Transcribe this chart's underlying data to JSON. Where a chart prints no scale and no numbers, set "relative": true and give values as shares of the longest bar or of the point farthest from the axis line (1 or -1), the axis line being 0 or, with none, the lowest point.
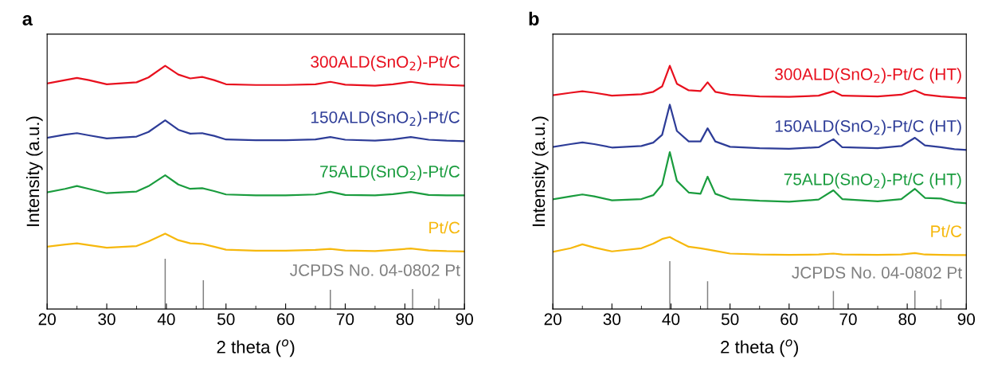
{
  "chart_data": [
    {
      "type": "line",
      "title": "a",
      "xlabel": "2 theta ($^{o}$)",
      "ylabel": "Intensity (a.u.)",
      "relative": true,
      "xlim": [
        20,
        90
      ],
      "xticks": [
        20,
        30,
        40,
        50,
        60,
        70,
        80,
        90
      ],
      "grid": false,
      "legend": false,
      "tick_labels": "x",
      "series": [
        {
          "name": "300ALD(SnO$_{2}$)-Pt/C",
          "color": "#e8101e",
          "x": [
            20,
            23,
            25,
            27,
            30,
            35,
            37,
            39.8,
            42,
            44,
            46,
            48,
            50,
            55,
            60,
            65,
            67.5,
            70,
            75,
            78,
            81,
            84,
            87,
            90
          ],
          "values": [
            0.927,
            0.941,
            0.95,
            0.941,
            0.924,
            0.932,
            0.952,
            1,
            0.964,
            0.948,
            0.954,
            0.941,
            0.924,
            0.921,
            0.921,
            0.924,
            0.934,
            0.922,
            0.918,
            0.924,
            0.934,
            0.924,
            0.921,
            0.918
          ]
        },
        {
          "name": "150ALD(SnO$_{2}$)-Pt/C",
          "color": "#2e3d98",
          "x": [
            20,
            23,
            25,
            27,
            30,
            35,
            37,
            39.8,
            42,
            44,
            46,
            48,
            50,
            55,
            60,
            65,
            67.5,
            70,
            75,
            78,
            81,
            84,
            87,
            90
          ],
          "values": [
            0.704,
            0.717,
            0.723,
            0.714,
            0.701,
            0.709,
            0.728,
            0.776,
            0.737,
            0.721,
            0.723,
            0.712,
            0.697,
            0.694,
            0.694,
            0.697,
            0.707,
            0.696,
            0.692,
            0.697,
            0.707,
            0.696,
            0.692,
            0.69
          ]
        },
        {
          "name": "75ALD(SnO$_{2}$)-Pt/C",
          "color": "#1a9c3e",
          "x": [
            20,
            23,
            25,
            27,
            30,
            35,
            37,
            39.8,
            42,
            44,
            46,
            48,
            50,
            55,
            60,
            65,
            67.5,
            70,
            75,
            78,
            81,
            84,
            87,
            90
          ],
          "values": [
            0.48,
            0.494,
            0.506,
            0.494,
            0.476,
            0.483,
            0.505,
            0.55,
            0.512,
            0.494,
            0.497,
            0.485,
            0.471,
            0.467,
            0.467,
            0.471,
            0.482,
            0.469,
            0.467,
            0.472,
            0.481,
            0.469,
            0.467,
            0.467
          ]
        },
        {
          "name": "Pt/C",
          "color": "#f6b80d",
          "x": [
            20,
            23,
            25,
            27,
            30,
            35,
            37,
            39.8,
            42,
            44,
            46,
            48,
            50,
            55,
            60,
            65,
            67.5,
            70,
            75,
            78,
            81,
            84,
            87,
            90
          ],
          "values": [
            0.256,
            0.265,
            0.27,
            0.263,
            0.252,
            0.259,
            0.278,
            0.31,
            0.283,
            0.27,
            0.268,
            0.256,
            0.244,
            0.24,
            0.24,
            0.243,
            0.247,
            0.241,
            0.238,
            0.243,
            0.249,
            0.241,
            0.238,
            0.237
          ]
        },
        {
          "name": "JCPDS No. 04-0802 Pt",
          "type": "bar",
          "color": "#808080",
          "x": [
            39.8,
            46.2,
            67.5,
            81.3,
            85.7
          ],
          "values": [
            0.207,
            0.118,
            0.079,
            0.082,
            0.042
          ]
        }
      ]
    },
    {
      "type": "line",
      "title": "b",
      "xlabel": "2 theta ($^{o}$)",
      "ylabel": "Intensity (a.u.)",
      "relative": true,
      "xlim": [
        20,
        90
      ],
      "xticks": [
        20,
        30,
        40,
        50,
        60,
        70,
        80,
        90
      ],
      "grid": false,
      "legend": false,
      "tick_labels": "x",
      "series": [
        {
          "name": "300ALD(SnO$_{2}$)-Pt/C (HT)",
          "color": "#e8101e",
          "x": [
            20,
            23,
            25,
            27,
            30,
            35,
            37,
            38.5,
            39.8,
            41,
            43,
            45,
            46.2,
            47.5,
            50,
            55,
            60,
            65,
            67.5,
            69,
            75,
            79,
            81.3,
            83,
            85.7,
            88,
            90
          ],
          "values": [
            0.879,
            0.889,
            0.895,
            0.889,
            0.877,
            0.883,
            0.893,
            0.915,
            1,
            0.926,
            0.899,
            0.896,
            0.932,
            0.893,
            0.881,
            0.874,
            0.872,
            0.877,
            0.895,
            0.877,
            0.874,
            0.881,
            0.899,
            0.881,
            0.874,
            0.87,
            0.867
          ]
        },
        {
          "name": "150ALD(SnO$_{2}$)-Pt/C (HT)",
          "color": "#2e3d98",
          "x": [
            20,
            23,
            25,
            27,
            30,
            35,
            37,
            38.5,
            39.8,
            41,
            43,
            45,
            46.2,
            47.5,
            50,
            55,
            60,
            65,
            67.5,
            69,
            75,
            79,
            81.3,
            83,
            85.7,
            88,
            90
          ],
          "values": [
            0.666,
            0.678,
            0.685,
            0.678,
            0.664,
            0.67,
            0.684,
            0.716,
            0.84,
            0.732,
            0.689,
            0.689,
            0.743,
            0.689,
            0.667,
            0.661,
            0.659,
            0.665,
            0.698,
            0.665,
            0.661,
            0.67,
            0.704,
            0.673,
            0.665,
            0.657,
            0.654
          ]
        },
        {
          "name": "75ALD(SnO$_{2}$)-Pt/C (HT)",
          "color": "#1a9c3e",
          "x": [
            20,
            23,
            25,
            27,
            30,
            35,
            37,
            38.5,
            39.8,
            41,
            43,
            45,
            46.2,
            47.5,
            50,
            55,
            60,
            65,
            67.5,
            69,
            75,
            79,
            81.3,
            83,
            85.7,
            88,
            90
          ],
          "values": [
            0.451,
            0.463,
            0.471,
            0.463,
            0.447,
            0.452,
            0.468,
            0.511,
            0.645,
            0.527,
            0.479,
            0.474,
            0.544,
            0.474,
            0.452,
            0.445,
            0.441,
            0.45,
            0.488,
            0.452,
            0.443,
            0.452,
            0.494,
            0.457,
            0.454,
            0.439,
            0.435
          ]
        },
        {
          "name": "Pt/C",
          "color": "#f6b80d",
          "x": [
            20,
            23,
            25,
            27,
            30,
            35,
            37,
            38.5,
            39.8,
            41,
            43,
            45,
            46.2,
            47.5,
            50,
            55,
            60,
            65,
            67.5,
            69,
            75,
            79,
            81.3,
            83,
            85.7,
            88,
            90
          ],
          "values": [
            0.235,
            0.25,
            0.266,
            0.253,
            0.237,
            0.25,
            0.269,
            0.288,
            0.296,
            0.28,
            0.256,
            0.25,
            0.245,
            0.239,
            0.228,
            0.224,
            0.223,
            0.224,
            0.228,
            0.224,
            0.223,
            0.224,
            0.23,
            0.224,
            0.223,
            0.222,
            0.222
          ]
        },
        {
          "name": "JCPDS No. 04-0802 Pt",
          "type": "bar",
          "color": "#808080",
          "x": [
            39.8,
            46.2,
            67.5,
            81.3,
            85.7
          ],
          "values": [
            0.197,
            0.114,
            0.074,
            0.076,
            0.04
          ]
        }
      ]
    }
  ]
}
